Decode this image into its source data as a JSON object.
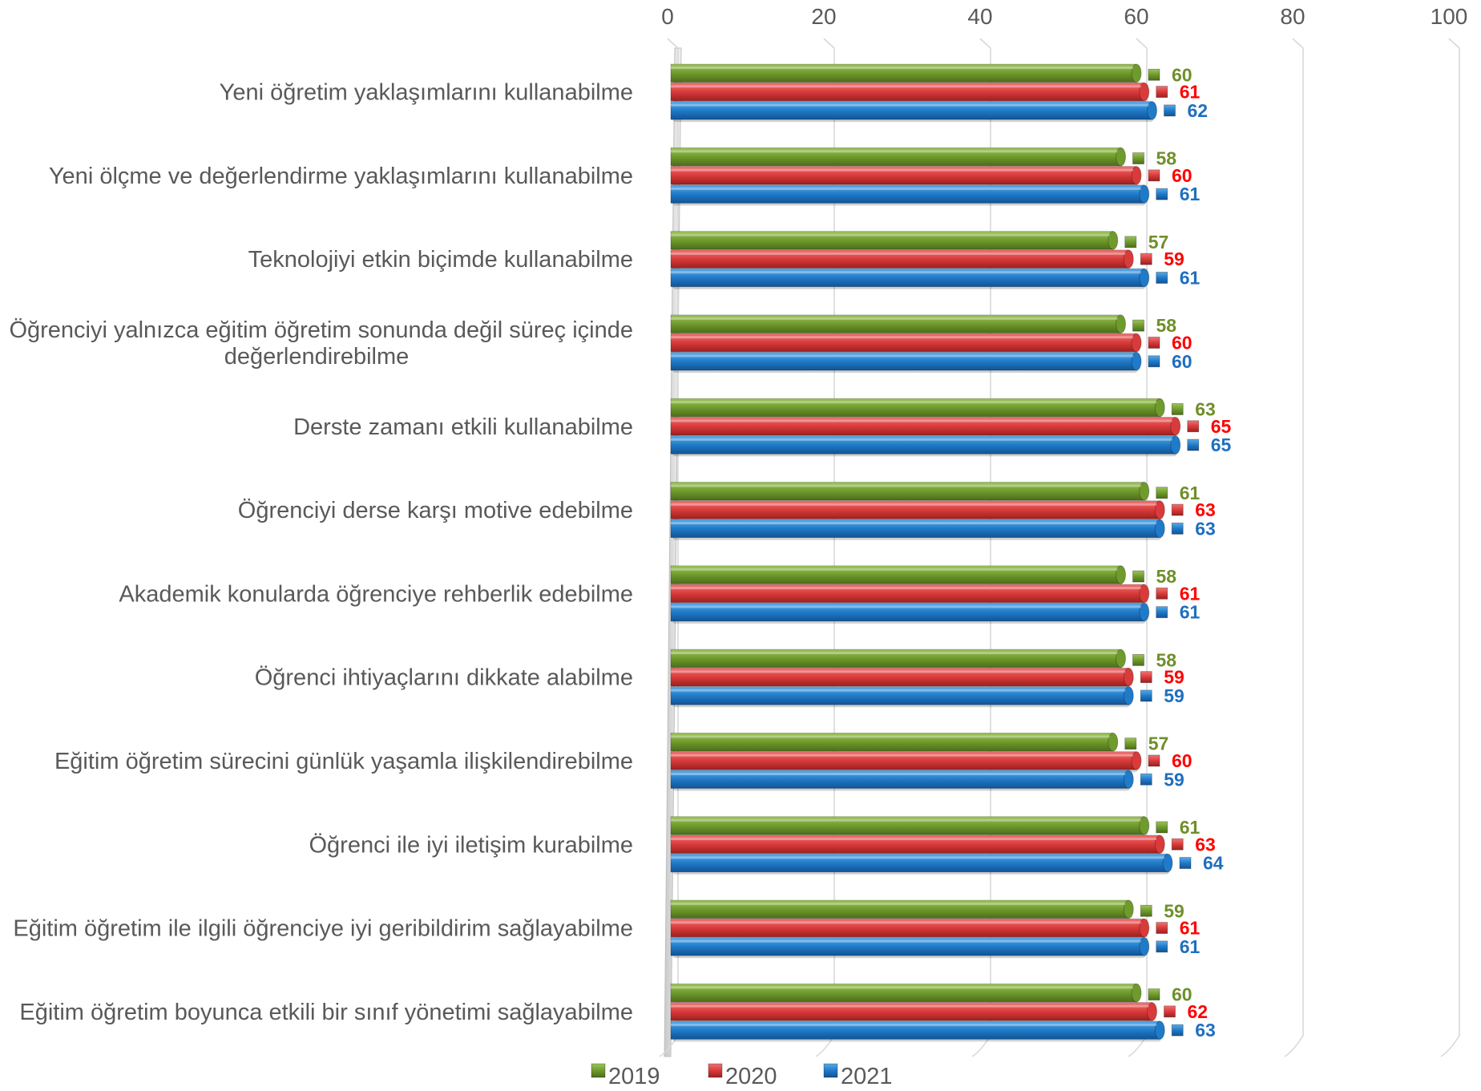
{
  "chart_data": {
    "type": "bar",
    "orientation": "horizontal",
    "categories": [
      "Yeni öğretim yaklaşımlarını kullanabilme",
      "Yeni ölçme ve değerlendirme yaklaşımlarını kullanabilme",
      "Teknolojiyi etkin  biçimde kullanabilme",
      "Öğrenciyi yalnızca eğitim öğretim sonunda değil süreç içinde değerlendirebilme",
      "Derste zamanı etkili kullanabilme",
      "Öğrenciyi derse karşı motive edebilme",
      "Akademik konularda öğrenciye rehberlik edebilme",
      "Öğrenci ihtiyaçlarını dikkate alabilme",
      "Eğitim öğretim sürecini günlük yaşamla ilişkilendirebilme",
      "Öğrenci ile iyi iletişim kurabilme",
      "Eğitim öğretim ile ilgili öğrenciye iyi geribildirim sağlayabilme",
      "Eğitim öğretim boyunca etkili bir sınıf yönetimi sağlayabilme"
    ],
    "category_lines": [
      [
        "Yeni öğretim yaklaşımlarını kullanabilme"
      ],
      [
        "Yeni ölçme ve değerlendirme yaklaşımlarını kullanabilme"
      ],
      [
        "Teknolojiyi etkin  biçimde kullanabilme"
      ],
      [
        "Öğrenciyi yalnızca eğitim öğretim sonunda değil süreç içinde",
        "değerlendirebilme"
      ],
      [
        "Derste zamanı etkili kullanabilme"
      ],
      [
        "Öğrenciyi derse karşı motive edebilme"
      ],
      [
        "Akademik konularda öğrenciye rehberlik edebilme"
      ],
      [
        "Öğrenci ihtiyaçlarını dikkate alabilme"
      ],
      [
        "Eğitim öğretim sürecini günlük yaşamla ilişkilendirebilme"
      ],
      [
        "Öğrenci ile iyi iletişim kurabilme"
      ],
      [
        "Eğitim öğretim ile ilgili öğrenciye iyi geribildirim sağlayabilme"
      ],
      [
        "Eğitim öğretim boyunca etkili bir sınıf yönetimi sağlayabilme"
      ]
    ],
    "series": [
      {
        "name": "2019",
        "color": "#6f9a2c",
        "label_color": "#6f8f2a",
        "values": [
          60,
          58,
          57,
          58,
          63,
          61,
          58,
          58,
          57,
          61,
          59,
          60
        ]
      },
      {
        "name": "2020",
        "color": "#d93a3a",
        "label_color": "#ff0000",
        "values": [
          61,
          60,
          59,
          60,
          65,
          63,
          61,
          59,
          60,
          63,
          61,
          62
        ]
      },
      {
        "name": "2021",
        "color": "#1f7ac8",
        "label_color": "#1f6fbf",
        "values": [
          62,
          61,
          61,
          60,
          65,
          63,
          61,
          59,
          59,
          64,
          61,
          63
        ]
      }
    ],
    "xlim": [
      0,
      100
    ],
    "xticks": [
      0,
      20,
      40,
      60,
      80,
      100
    ],
    "grid": true,
    "legend_position": "bottom",
    "data_labels": true,
    "title": "",
    "xlabel": "",
    "ylabel": ""
  }
}
